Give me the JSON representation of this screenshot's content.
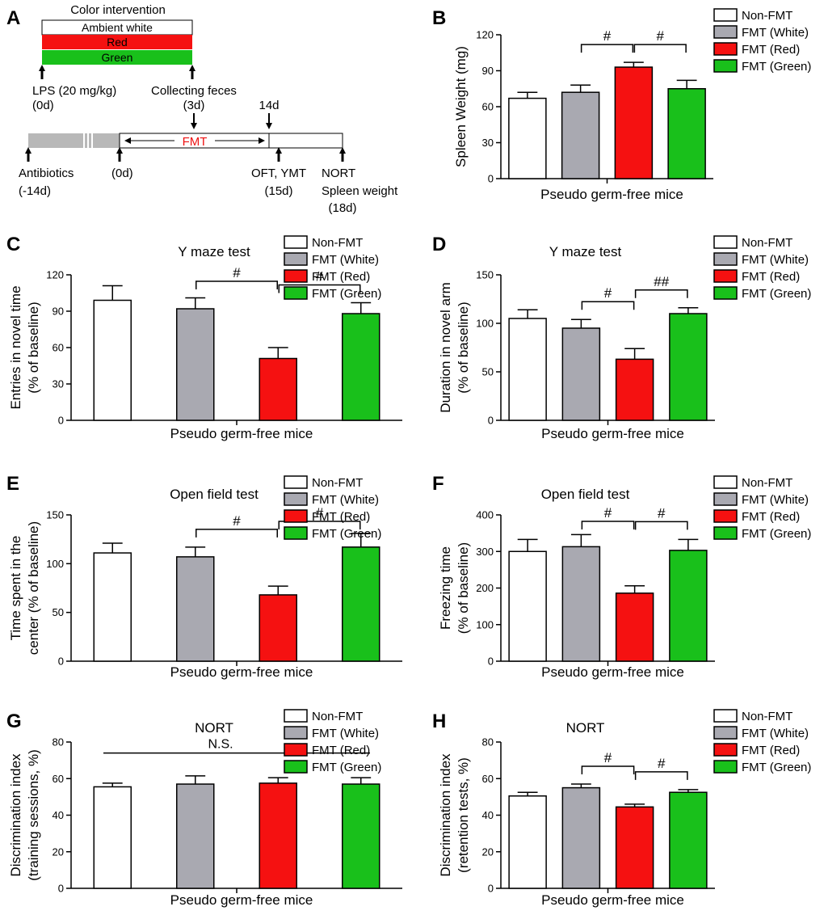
{
  "colors": {
    "white": "#ffffff",
    "gray": "#a9a9b1",
    "red": "#f51111",
    "green": "#19c01b",
    "stroke": "#000000",
    "timeline_gray": "#b8b8b8",
    "fmt_text": "#ee1111"
  },
  "legend": [
    "Non-FMT",
    "FMT (White)",
    "FMT (Red)",
    "FMT (Green)"
  ],
  "panel_a": {
    "letter": "A",
    "intervention_title": "Color intervention",
    "bands": [
      "Ambient white",
      "Red",
      "Green"
    ],
    "lps_label": [
      "LPS (20 mg/kg)",
      "(0d)"
    ],
    "feces_label": [
      "Collecting feces",
      "(3d)"
    ],
    "day14_label": "14d",
    "fmt_label": "FMT",
    "antibiotics_label": [
      "Antibiotics",
      "(-14d)"
    ],
    "day0_label": "(0d)",
    "oft_label": [
      "OFT, YMT",
      "(15d)"
    ],
    "nort_label": [
      "NORT",
      "Spleen weight",
      "(18d)"
    ]
  },
  "chart_data": [
    {
      "panel": "B",
      "type": "bar",
      "title": "",
      "xlabel": "Pseudo germ-free mice",
      "ylabel": [
        "Spleen Weight (mg)"
      ],
      "categories": [
        "Non-FMT",
        "FMT (White)",
        "FMT (Red)",
        "FMT (Green)"
      ],
      "values": [
        67,
        72,
        93,
        75
      ],
      "errors": [
        5,
        6,
        4,
        7
      ],
      "ylim": [
        0,
        120
      ],
      "yticks": [
        0,
        30,
        60,
        90,
        120
      ],
      "annotations": [
        {
          "from": 1,
          "to": 2,
          "label": "#"
        },
        {
          "from": 2,
          "to": 3,
          "label": "#"
        }
      ]
    },
    {
      "panel": "C",
      "type": "bar",
      "title": "Y maze test",
      "xlabel": "Pseudo germ-free mice",
      "ylabel": [
        "Entries in novel time",
        "(% of baseline)"
      ],
      "categories": [
        "Non-FMT",
        "FMT (White)",
        "FMT (Red)",
        "FMT (Green)"
      ],
      "values": [
        99,
        92,
        51,
        88
      ],
      "errors": [
        12,
        9,
        9,
        9
      ],
      "ylim": [
        0,
        120
      ],
      "yticks": [
        0,
        30,
        60,
        90,
        120
      ],
      "annotations": [
        {
          "from": 1,
          "to": 2,
          "label": "#"
        },
        {
          "from": 2,
          "to": 3,
          "label": "#"
        }
      ]
    },
    {
      "panel": "D",
      "type": "bar",
      "title": "Y maze test",
      "xlabel": "Pseudo germ-free mice",
      "ylabel": [
        "Duration in novel arm",
        "(% of baseline)"
      ],
      "categories": [
        "Non-FMT",
        "FMT (White)",
        "FMT (Red)",
        "FMT (Green)"
      ],
      "values": [
        105,
        95,
        63,
        110
      ],
      "errors": [
        9,
        9,
        11,
        6
      ],
      "ylim": [
        0,
        150
      ],
      "yticks": [
        0,
        50,
        100,
        150
      ],
      "annotations": [
        {
          "from": 1,
          "to": 2,
          "label": "#"
        },
        {
          "from": 2,
          "to": 3,
          "label": "##"
        }
      ]
    },
    {
      "panel": "E",
      "type": "bar",
      "title": "Open field test",
      "xlabel": "Pseudo germ-free mice",
      "ylabel": [
        "Time spent in the",
        "center (% of baseline)"
      ],
      "categories": [
        "Non-FMT",
        "FMT (White)",
        "FMT (Red)",
        "FMT (Green)"
      ],
      "values": [
        111,
        107,
        68,
        117
      ],
      "errors": [
        10,
        10,
        9,
        14
      ],
      "ylim": [
        0,
        150
      ],
      "yticks": [
        0,
        50,
        100,
        150
      ],
      "annotations": [
        {
          "from": 1,
          "to": 2,
          "label": "#"
        },
        {
          "from": 2,
          "to": 3,
          "label": "#"
        }
      ]
    },
    {
      "panel": "F",
      "type": "bar",
      "title": "Open field test",
      "xlabel": "Pseudo germ-free mice",
      "ylabel": [
        "Freezing time",
        "(% of baseline)"
      ],
      "categories": [
        "Non-FMT",
        "FMT (White)",
        "FMT (Red)",
        "FMT (Green)"
      ],
      "values": [
        300,
        313,
        186,
        303
      ],
      "errors": [
        33,
        33,
        20,
        30
      ],
      "ylim": [
        0,
        400
      ],
      "yticks": [
        0,
        100,
        200,
        300,
        400
      ],
      "annotations": [
        {
          "from": 1,
          "to": 2,
          "label": "#"
        },
        {
          "from": 2,
          "to": 3,
          "label": "#"
        }
      ]
    },
    {
      "panel": "G",
      "type": "bar",
      "title": "NORT",
      "xlabel": "Pseudo germ-free mice",
      "ylabel": [
        "Discrimination index",
        "(training sessions, %)"
      ],
      "categories": [
        "Non-FMT",
        "FMT (White)",
        "FMT (Red)",
        "FMT (Green)"
      ],
      "values": [
        55.5,
        57,
        57.5,
        57
      ],
      "errors": [
        2,
        4.5,
        3,
        3.5
      ],
      "ylim": [
        0,
        80
      ],
      "yticks": [
        0,
        20,
        40,
        60,
        80
      ],
      "annotations": [
        {
          "from": 0,
          "to": 3,
          "label": "N.S.",
          "style": "line"
        }
      ]
    },
    {
      "panel": "H",
      "type": "bar",
      "title": "NORT",
      "xlabel": "Pseudo germ-free mice",
      "ylabel": [
        "Discrimination index",
        "(retention tests, %)"
      ],
      "categories": [
        "Non-FMT",
        "FMT (White)",
        "FMT (Red)",
        "FMT (Green)"
      ],
      "values": [
        50.5,
        55,
        44.5,
        52.5
      ],
      "errors": [
        2,
        2,
        1.5,
        1.5
      ],
      "ylim": [
        0,
        80
      ],
      "yticks": [
        0,
        20,
        40,
        60,
        80
      ],
      "annotations": [
        {
          "from": 1,
          "to": 2,
          "label": "#"
        },
        {
          "from": 2,
          "to": 3,
          "label": "#"
        }
      ]
    }
  ]
}
